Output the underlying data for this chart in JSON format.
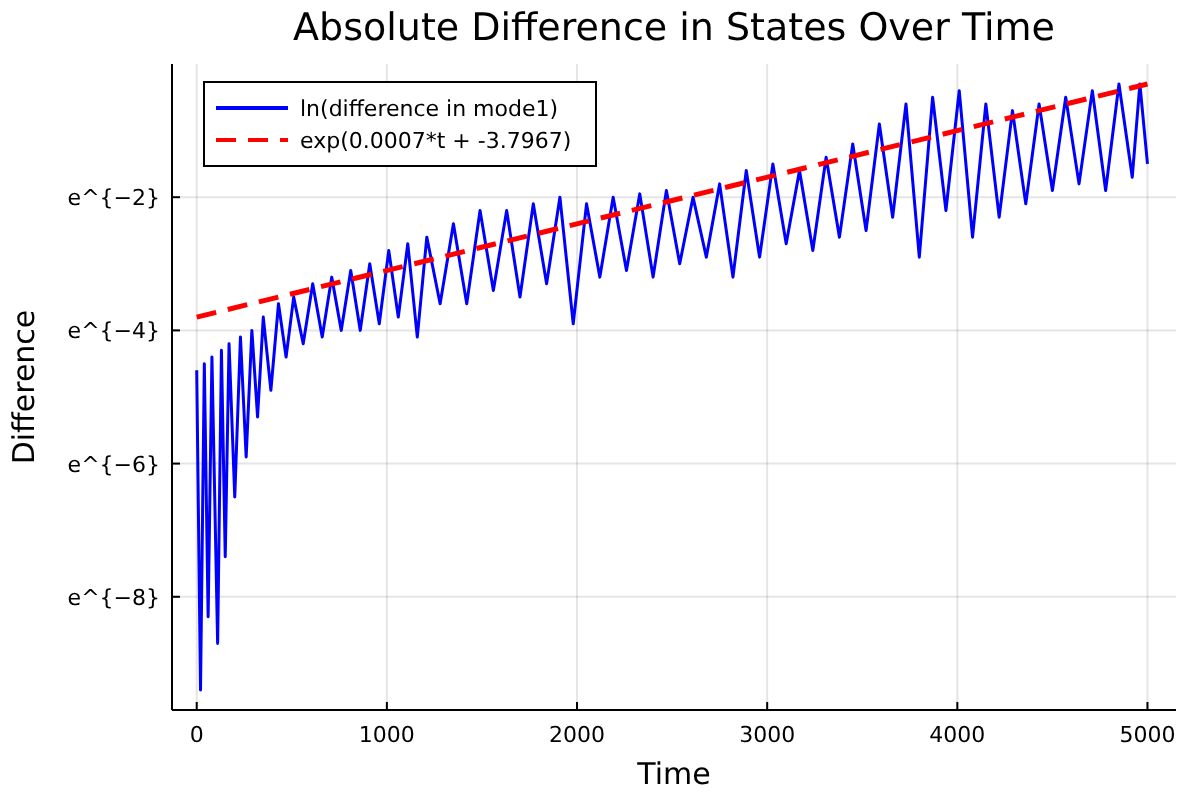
{
  "chart_data": {
    "type": "line",
    "title": "Absolute Difference in States Over Time",
    "xlabel": "Time",
    "ylabel": "Difference",
    "xlim": [
      -130,
      5150
    ],
    "xticks": [
      0,
      1000,
      2000,
      3000,
      4000,
      5000
    ],
    "ylim": [
      -9.7,
      0
    ],
    "yticks": [
      {
        "value": -8,
        "label": "e^{−8}"
      },
      {
        "value": -6,
        "label": "e^{−6}"
      },
      {
        "value": -4,
        "label": "e^{−4}"
      },
      {
        "value": -2,
        "label": "e^{−2}"
      }
    ],
    "grid": true,
    "legend": "top left",
    "series": [
      {
        "name": "ln(difference in mode1)",
        "color": "#0000ff",
        "line_style": "solid",
        "x": [
          0,
          20,
          40,
          60,
          80,
          110,
          130,
          150,
          170,
          200,
          230,
          260,
          290,
          320,
          350,
          390,
          430,
          470,
          510,
          560,
          610,
          660,
          710,
          760,
          810,
          860,
          910,
          960,
          1010,
          1060,
          1110,
          1160,
          1210,
          1280,
          1350,
          1420,
          1490,
          1560,
          1630,
          1700,
          1770,
          1840,
          1910,
          1980,
          2050,
          2120,
          2190,
          2260,
          2330,
          2400,
          2470,
          2540,
          2610,
          2680,
          2750,
          2820,
          2890,
          2960,
          3030,
          3100,
          3170,
          3240,
          3310,
          3380,
          3450,
          3520,
          3590,
          3660,
          3730,
          3800,
          3870,
          3940,
          4010,
          4080,
          4150,
          4220,
          4290,
          4360,
          4430,
          4500,
          4570,
          4640,
          4710,
          4780,
          4850,
          4920,
          4960,
          5000
        ],
        "values": [
          -4.6,
          -9.4,
          -4.5,
          -8.3,
          -4.4,
          -8.7,
          -4.3,
          -7.4,
          -4.2,
          -6.5,
          -4.1,
          -5.9,
          -4.0,
          -5.3,
          -3.8,
          -4.9,
          -3.6,
          -4.4,
          -3.5,
          -4.2,
          -3.3,
          -4.1,
          -3.2,
          -4.0,
          -3.1,
          -4.0,
          -3.0,
          -3.9,
          -2.8,
          -3.8,
          -2.7,
          -4.1,
          -2.6,
          -3.6,
          -2.4,
          -3.6,
          -2.2,
          -3.4,
          -2.2,
          -3.5,
          -2.1,
          -3.3,
          -2.0,
          -3.9,
          -2.1,
          -3.2,
          -2.0,
          -3.1,
          -1.95,
          -3.2,
          -1.9,
          -3.0,
          -2.0,
          -2.9,
          -1.8,
          -3.2,
          -1.6,
          -2.9,
          -1.5,
          -2.7,
          -1.6,
          -2.8,
          -1.4,
          -2.6,
          -1.2,
          -2.5,
          -0.9,
          -2.3,
          -0.6,
          -2.9,
          -0.5,
          -2.2,
          -0.4,
          -2.6,
          -0.6,
          -2.3,
          -0.7,
          -2.1,
          -0.6,
          -1.9,
          -0.5,
          -1.8,
          -0.4,
          -1.9,
          -0.3,
          -1.7,
          -0.3,
          -1.5
        ]
      },
      {
        "name": "exp(0.0007*t + -3.7967)",
        "color": "#ff0000",
        "line_style": "dashed",
        "x": [
          0,
          5000
        ],
        "values": [
          -3.8,
          -0.3
        ]
      }
    ]
  }
}
